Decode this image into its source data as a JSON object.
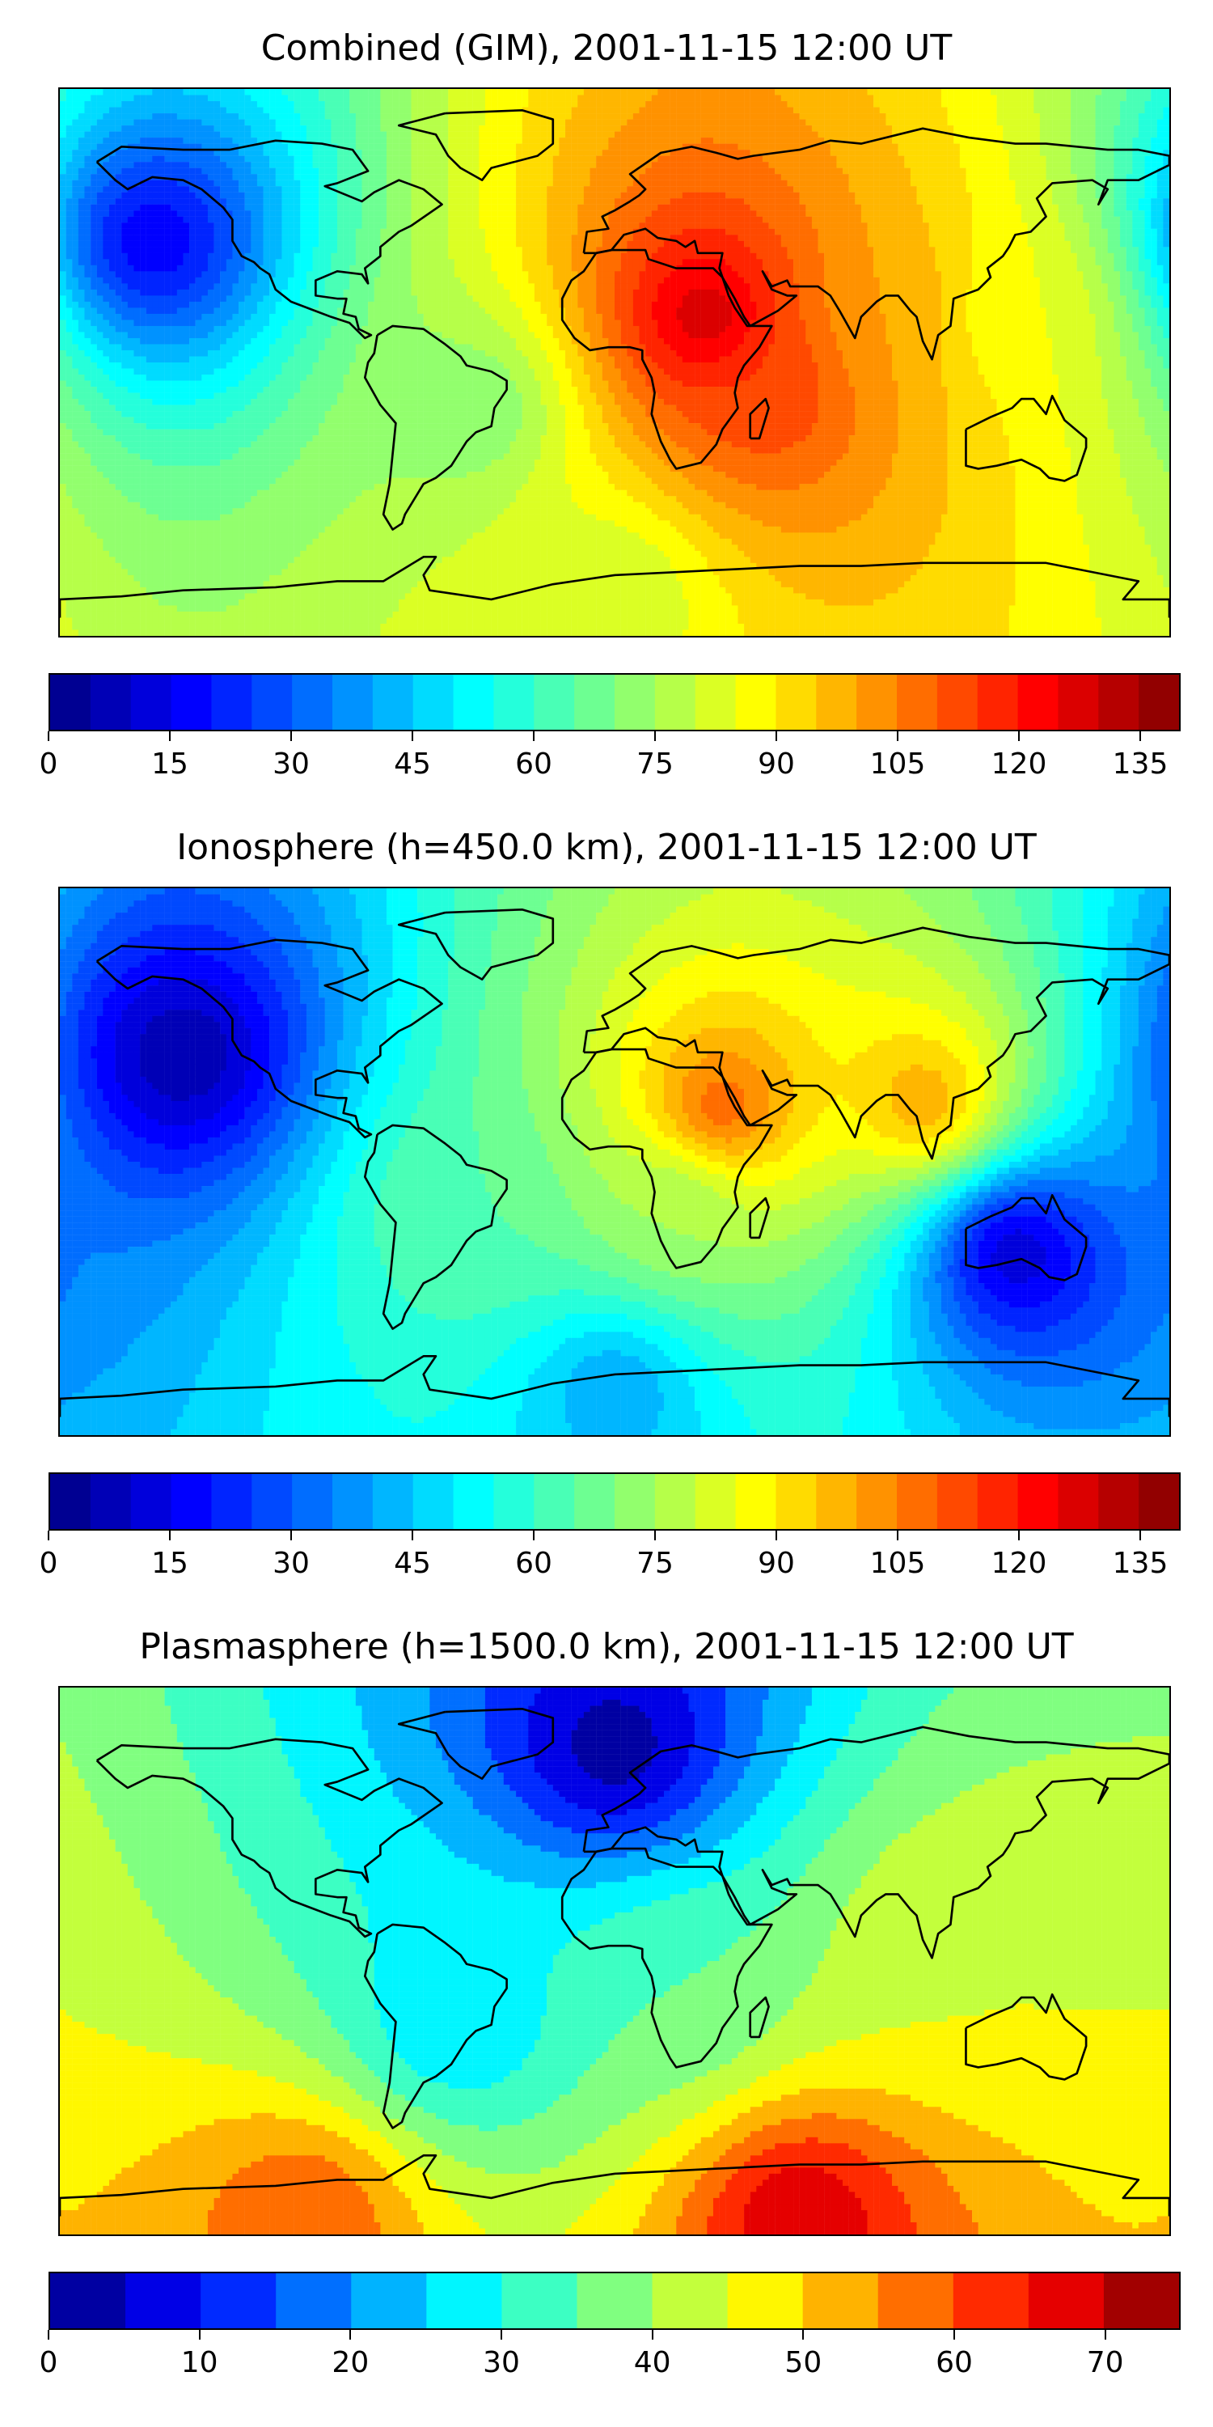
{
  "chart_data": [
    {
      "type": "heatmap",
      "title": "Combined (GIM), 2001-11-15 12:00 UT",
      "colormap": "jet",
      "colorbar": {
        "vmin": 0,
        "vmax": 140,
        "step": 5,
        "ticks": [
          "0",
          "15",
          "30",
          "45",
          "60",
          "75",
          "90",
          "105",
          "120",
          "135"
        ]
      },
      "field_description": "max over northern Africa / Arabia, high band across Indian Ocean to SE Asia, low over N. Pacific",
      "features": [
        {
          "lon": 30,
          "lat": 15,
          "value": 130
        },
        {
          "lon": 50,
          "lat": -10,
          "value": 115
        },
        {
          "lon": 90,
          "lat": 15,
          "value": 100
        },
        {
          "lon": 130,
          "lat": 15,
          "value": 85
        },
        {
          "lon": -45,
          "lat": -15,
          "value": 70
        },
        {
          "lon": -150,
          "lat": 40,
          "value": 15
        },
        {
          "lon": 0,
          "lat": -75,
          "value": 80
        }
      ]
    },
    {
      "type": "heatmap",
      "title": "Ionosphere  (h=450.0 km), 2001-11-15 12:00 UT",
      "colormap": "jet",
      "colorbar": {
        "vmin": 0,
        "vmax": 140,
        "step": 5,
        "ticks": [
          "0",
          "15",
          "30",
          "45",
          "60",
          "75",
          "90",
          "105",
          "120",
          "135"
        ]
      },
      "features": [
        {
          "lon": 35,
          "lat": 18,
          "value": 110
        },
        {
          "lon": 100,
          "lat": 20,
          "value": 100
        },
        {
          "lon": 20,
          "lat": -15,
          "value": 75
        },
        {
          "lon": -50,
          "lat": -15,
          "value": 65
        },
        {
          "lon": -140,
          "lat": 35,
          "value": 5
        },
        {
          "lon": 130,
          "lat": -30,
          "value": 10
        },
        {
          "lon": 0,
          "lat": -75,
          "value": 40
        }
      ]
    },
    {
      "type": "heatmap",
      "title": "Plasmasphere (h=1500.0 km), 2001-11-15 12:00 UT",
      "colormap": "jet",
      "colorbar": {
        "vmin": 0,
        "vmax": 75,
        "step": 5,
        "ticks": [
          "0",
          "10",
          "20",
          "30",
          "40",
          "50",
          "60",
          "70"
        ]
      },
      "features": [
        {
          "lon": 110,
          "lat": 5,
          "value": 45
        },
        {
          "lon": 20,
          "lat": -10,
          "value": 35
        },
        {
          "lon": -50,
          "lat": -20,
          "value": 25
        },
        {
          "lon": 0,
          "lat": 70,
          "value": 2
        },
        {
          "lon": 60,
          "lat": -85,
          "value": 70
        },
        {
          "lon": -100,
          "lat": -85,
          "value": 60
        }
      ]
    }
  ]
}
